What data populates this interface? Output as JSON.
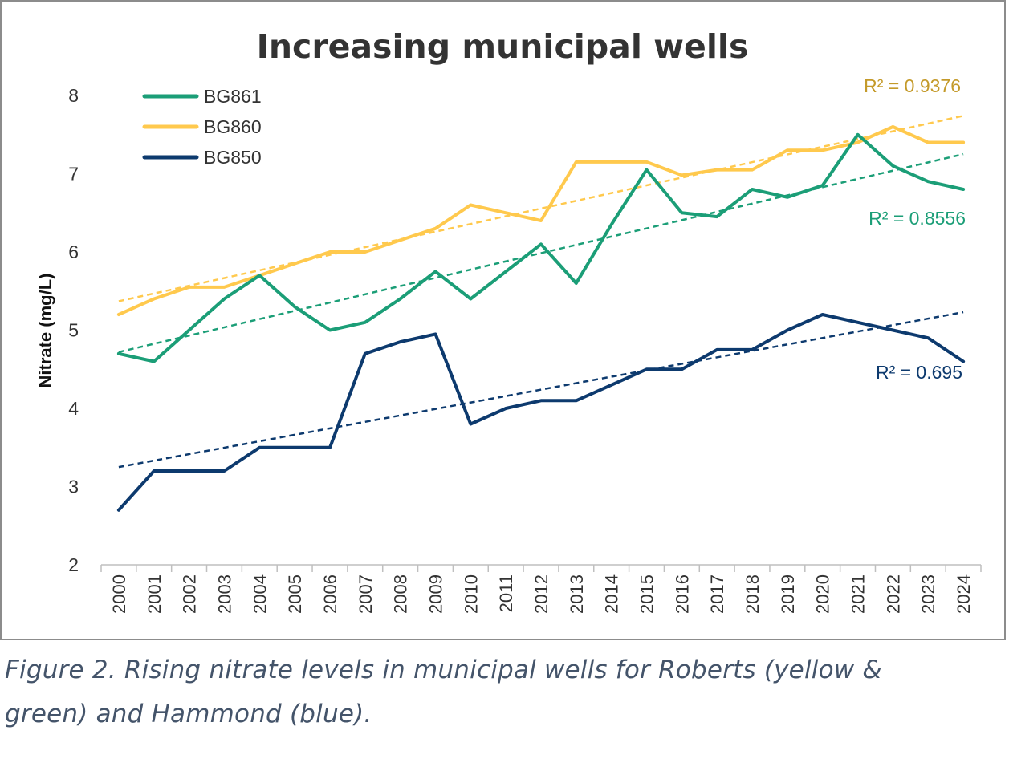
{
  "chart_data": {
    "type": "line",
    "title": "Increasing municipal wells",
    "xlabel": "",
    "ylabel": "Nitrate (mg/L)",
    "ylim": [
      2,
      8
    ],
    "yticks": [
      2,
      3,
      4,
      5,
      6,
      7,
      8
    ],
    "grid": false,
    "legend": "top-left",
    "categories": [
      "2000",
      "2001",
      "2002",
      "2003",
      "2004",
      "2005",
      "2006",
      "2007",
      "2008",
      "2009",
      "2010",
      "2011",
      "2012",
      "2013",
      "2014",
      "2015",
      "2016",
      "2017",
      "2018",
      "2019",
      "2020",
      "2021",
      "2022",
      "2023",
      "2024"
    ],
    "series": [
      {
        "name": "BG861",
        "color": "#1b9e77",
        "values": [
          4.7,
          4.6,
          5.0,
          5.4,
          5.7,
          5.3,
          5.0,
          5.1,
          5.4,
          5.75,
          5.4,
          5.75,
          6.1,
          5.6,
          6.35,
          7.05,
          6.5,
          6.45,
          6.8,
          6.7,
          6.85,
          7.5,
          7.1,
          6.9,
          6.8
        ],
        "trendline": {
          "start": 4.72,
          "end": 7.25,
          "r2_label": "R² = 0.8556"
        }
      },
      {
        "name": "BG860",
        "color": "#ffc94d",
        "values": [
          5.2,
          5.4,
          5.55,
          5.55,
          5.7,
          5.85,
          6.0,
          6.0,
          6.15,
          6.3,
          6.6,
          6.5,
          6.4,
          7.15,
          7.15,
          7.15,
          6.98,
          7.05,
          7.05,
          7.3,
          7.3,
          7.4,
          7.6,
          7.4,
          7.4
        ],
        "trendline": {
          "start": 5.37,
          "end": 7.74,
          "r2_label": "R² = 0.9376"
        }
      },
      {
        "name": "BG850",
        "color": "#0d3a6e",
        "values": [
          2.7,
          3.2,
          3.2,
          3.2,
          3.5,
          3.5,
          3.5,
          4.7,
          4.85,
          4.95,
          3.8,
          4.0,
          4.1,
          4.1,
          4.3,
          4.5,
          4.5,
          4.75,
          4.75,
          5.0,
          5.2,
          5.1,
          5.0,
          4.9,
          4.6
        ],
        "trendline": {
          "start": 3.25,
          "end": 5.23,
          "r2_label": "R² = 0.695"
        }
      }
    ]
  },
  "caption": {
    "line1": "Figure 2.  Rising nitrate levels in municipal wells for Roberts (yellow &",
    "line2": "green) and Hammond (blue)."
  }
}
